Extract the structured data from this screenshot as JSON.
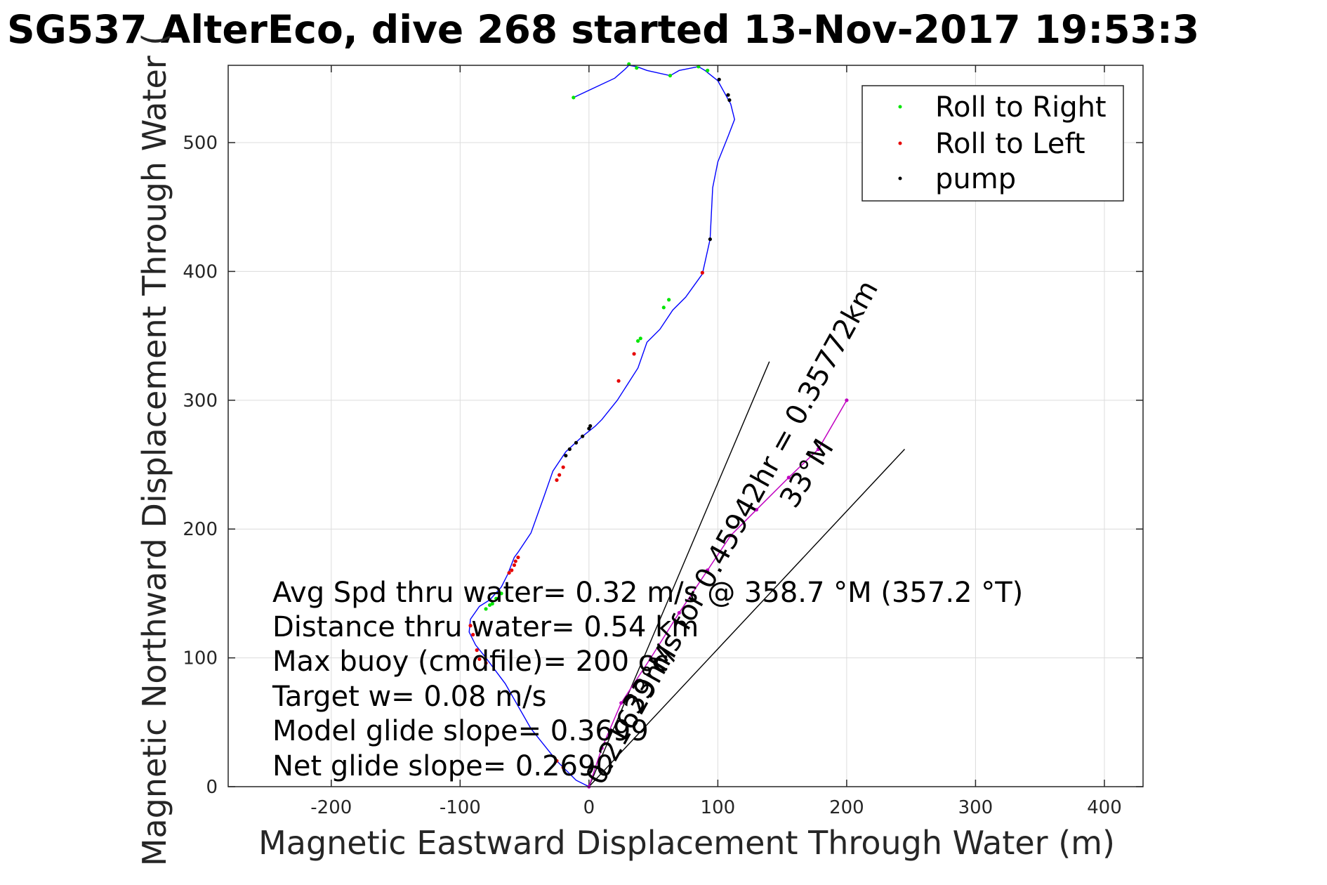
{
  "chart_data": {
    "type": "line",
    "title": "SG537 AlterEco, dive 268 started 13-Nov-2017 19:53:3",
    "xlabel": "Magnetic Eastward Displacement Through Water (m)",
    "ylabel": "Magnetic Northward Displacement Through Water (",
    "xlim": [
      -280,
      430
    ],
    "ylim": [
      0,
      560
    ],
    "xticks": [
      -200,
      -100,
      0,
      100,
      200,
      300,
      400
    ],
    "yticks": [
      0,
      100,
      200,
      300,
      400,
      500
    ],
    "grid": true,
    "legend_position": "top-right",
    "legend": [
      {
        "label": "Roll to Right",
        "color": "#00e600"
      },
      {
        "label": "Roll to Left",
        "color": "#e60000"
      },
      {
        "label": "pump",
        "color": "#000000"
      }
    ],
    "track": {
      "color": "#0000ff",
      "x": [
        0,
        -10,
        -25,
        -45,
        -65,
        -80,
        -88,
        -93,
        -92,
        -85,
        -77,
        -68,
        -63,
        -58,
        -55,
        -45,
        -35,
        -28,
        -18,
        -5,
        5,
        10,
        22,
        38,
        45,
        55,
        65,
        75,
        88,
        94,
        95,
        96,
        100,
        108,
        113,
        110,
        100,
        90,
        85,
        70,
        63,
        45,
        37,
        31,
        28,
        20,
        -12
      ],
      "y": [
        0,
        5,
        20,
        45,
        80,
        100,
        110,
        120,
        130,
        140,
        145,
        155,
        165,
        178,
        182,
        197,
        225,
        245,
        260,
        272,
        280,
        285,
        300,
        325,
        345,
        355,
        370,
        380,
        398,
        425,
        445,
        465,
        485,
        505,
        518,
        530,
        548,
        556,
        559,
        556,
        552,
        556,
        559,
        560,
        557,
        550,
        535
      ]
    },
    "points": {
      "roll_right_xy": [
        [
          -12,
          535
        ],
        [
          31,
          561
        ],
        [
          37,
          558
        ],
        [
          63,
          552
        ],
        [
          85,
          559
        ],
        [
          92,
          556
        ],
        [
          62,
          378
        ],
        [
          58,
          372
        ],
        [
          40,
          348
        ],
        [
          38,
          346
        ],
        [
          -68,
          150
        ],
        [
          -72,
          146
        ],
        [
          -75,
          142
        ],
        [
          -77,
          141
        ],
        [
          -80,
          138
        ]
      ],
      "roll_left_xy": [
        [
          88,
          399
        ],
        [
          35,
          336
        ],
        [
          23,
          315
        ],
        [
          -25,
          238
        ],
        [
          -23,
          242
        ],
        [
          -20,
          248
        ],
        [
          -55,
          178
        ],
        [
          -57,
          175
        ],
        [
          -58,
          172
        ],
        [
          -60,
          168
        ],
        [
          -62,
          166
        ],
        [
          -92,
          125
        ],
        [
          -90,
          118
        ],
        [
          -87,
          106
        ],
        [
          -85,
          99
        ],
        [
          -80,
          96
        ],
        [
          -25,
          20
        ],
        [
          -20,
          15
        ]
      ],
      "pump_xy": [
        [
          101,
          549
        ],
        [
          108,
          537
        ],
        [
          109,
          533
        ],
        [
          94,
          425
        ],
        [
          1,
          280
        ],
        [
          0,
          278
        ],
        [
          -5,
          272
        ],
        [
          -10,
          267
        ],
        [
          -15,
          262
        ],
        [
          -18,
          257
        ]
      ],
      "dive_xy": [
        [
          0,
          0
        ],
        [
          10,
          30
        ],
        [
          25,
          65
        ],
        [
          48,
          100
        ],
        [
          70,
          135
        ],
        [
          92,
          168
        ],
        [
          110,
          195
        ],
        [
          130,
          215
        ],
        [
          155,
          240
        ],
        [
          178,
          262
        ],
        [
          200,
          300
        ]
      ]
    },
    "bearing_lines": [
      {
        "x": [
          0,
          140
        ],
        "y": [
          0,
          330
        ]
      },
      {
        "x": [
          0,
          245
        ],
        "y": [
          0,
          262
        ]
      }
    ],
    "diagonal_labels": [
      {
        "text": "0.21629m/s for 0.45942hr = 0.35772km",
        "anchor": [
          10,
          0
        ],
        "angle_deg": -61
      },
      {
        "text": "33°M",
        "anchor": [
          38,
          55
        ],
        "angle_deg": -58
      },
      {
        "text": "33°M",
        "anchor": [
          160,
          215
        ],
        "angle_deg": -58
      }
    ],
    "annotations": [
      "Avg Spd thru water=  0.32 m/s @ 358.7 °M (357.2 °T)",
      "Distance thru water=  0.54 km",
      "Max buoy (cmdfile)= 200 cc",
      "Target w= 0.08 m/s",
      "Model glide slope= 0.3699",
      "Net glide slope= 0.2690"
    ]
  }
}
